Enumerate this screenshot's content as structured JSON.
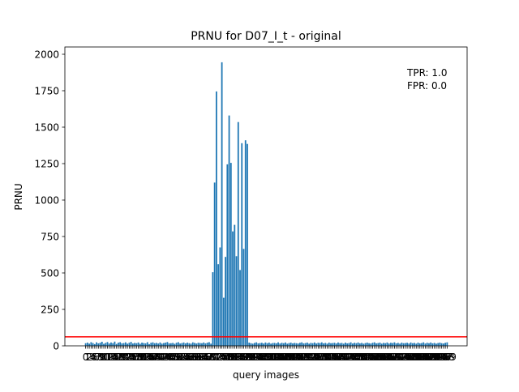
{
  "chart_data": {
    "type": "bar",
    "title": "PRNU for D07_I_t - original",
    "xlabel": "query images",
    "ylabel": "PRNU",
    "ylim": [
      0,
      2050
    ],
    "yticks": [
      0,
      250,
      500,
      750,
      1000,
      1250,
      1500,
      1750,
      2000
    ],
    "grid": false,
    "n_bars": 200,
    "bar_color": "#1f77b4",
    "threshold": {
      "value": 62,
      "color": "#ff0000"
    },
    "annotations": [
      "TPR: 1.0",
      "FPR: 0.0"
    ],
    "x": [
      0,
      1,
      2,
      3,
      4,
      5,
      6,
      7,
      8,
      9,
      10,
      11,
      12,
      13,
      14,
      15,
      16,
      17,
      18,
      19,
      20,
      21,
      22,
      23,
      24,
      25,
      26,
      27,
      28,
      29,
      30,
      31,
      32,
      33,
      34,
      35,
      36,
      37,
      38,
      39,
      40,
      41,
      42,
      43,
      44,
      45,
      46,
      47,
      48,
      49,
      50,
      51,
      52,
      53,
      54,
      55,
      56,
      57,
      58,
      59,
      60,
      61,
      62,
      63,
      64,
      65,
      66,
      67,
      68,
      69,
      70,
      71,
      72,
      73,
      74,
      75,
      76,
      77,
      78,
      79,
      80,
      81,
      82,
      83,
      84,
      85,
      86,
      87,
      88,
      89,
      90,
      91,
      92,
      93,
      94,
      95,
      96,
      97,
      98,
      99,
      100,
      101,
      102,
      103,
      104,
      105,
      106,
      107,
      108,
      109,
      110,
      111,
      112,
      113,
      114,
      115,
      116,
      117,
      118,
      119,
      120,
      121,
      122,
      123,
      124,
      125,
      126,
      127,
      128,
      129,
      130,
      131,
      132,
      133,
      134,
      135,
      136,
      137,
      138,
      139,
      140,
      141,
      142,
      143,
      144,
      145,
      146,
      147,
      148,
      149,
      150,
      151,
      152,
      153,
      154,
      155,
      156,
      157,
      158,
      159,
      160,
      161,
      162,
      163,
      164,
      165,
      166,
      167,
      168,
      169,
      170,
      171,
      172,
      173,
      174,
      175,
      176,
      177,
      178,
      179,
      180,
      181,
      182,
      183,
      184,
      185,
      186,
      187,
      188,
      189,
      190,
      191,
      192,
      193,
      194,
      195,
      196,
      197,
      198,
      199
    ],
    "values": [
      18,
      22,
      15,
      25,
      19,
      12,
      24,
      17,
      21,
      28,
      14,
      20,
      26,
      16,
      23,
      18,
      29,
      13,
      22,
      25,
      17,
      19,
      24,
      15,
      21,
      27,
      16,
      20,
      18,
      23,
      14,
      22,
      19,
      17,
      25,
      12,
      21,
      24,
      18,
      20,
      16,
      23,
      15,
      19,
      22,
      26,
      17,
      18,
      20,
      14,
      21,
      25,
      16,
      19,
      23,
      17,
      22,
      18,
      15,
      24,
      20,
      16,
      21,
      19,
      18,
      23,
      17,
      22,
      25,
      15,
      505,
      1120,
      1745,
      560,
      675,
      1945,
      330,
      610,
      1245,
      1580,
      1255,
      785,
      830,
      615,
      1535,
      520,
      1390,
      665,
      1410,
      1385,
      22,
      18,
      15,
      20,
      24,
      17,
      19,
      21,
      16,
      23,
      18,
      22,
      15,
      19,
      20,
      17,
      24,
      16,
      21,
      18,
      23,
      15,
      19,
      22,
      17,
      20,
      18,
      16,
      21,
      24,
      17,
      19,
      22,
      15,
      20,
      18,
      23,
      16,
      21,
      19,
      24,
      17,
      20,
      15,
      22,
      18,
      19,
      21,
      16,
      23,
      18,
      20,
      15,
      22,
      17,
      19,
      24,
      16,
      21,
      18,
      23,
      17,
      20,
      15,
      19,
      22,
      18,
      16,
      21,
      24,
      17,
      19,
      22,
      15,
      20,
      18,
      23,
      16,
      21,
      19,
      24,
      17,
      20,
      15,
      22,
      18,
      19,
      21,
      16,
      23,
      18,
      20,
      15,
      22,
      17,
      19,
      24,
      16,
      21,
      18,
      23,
      17,
      20,
      15,
      19,
      22,
      18,
      16,
      21,
      24
    ]
  }
}
